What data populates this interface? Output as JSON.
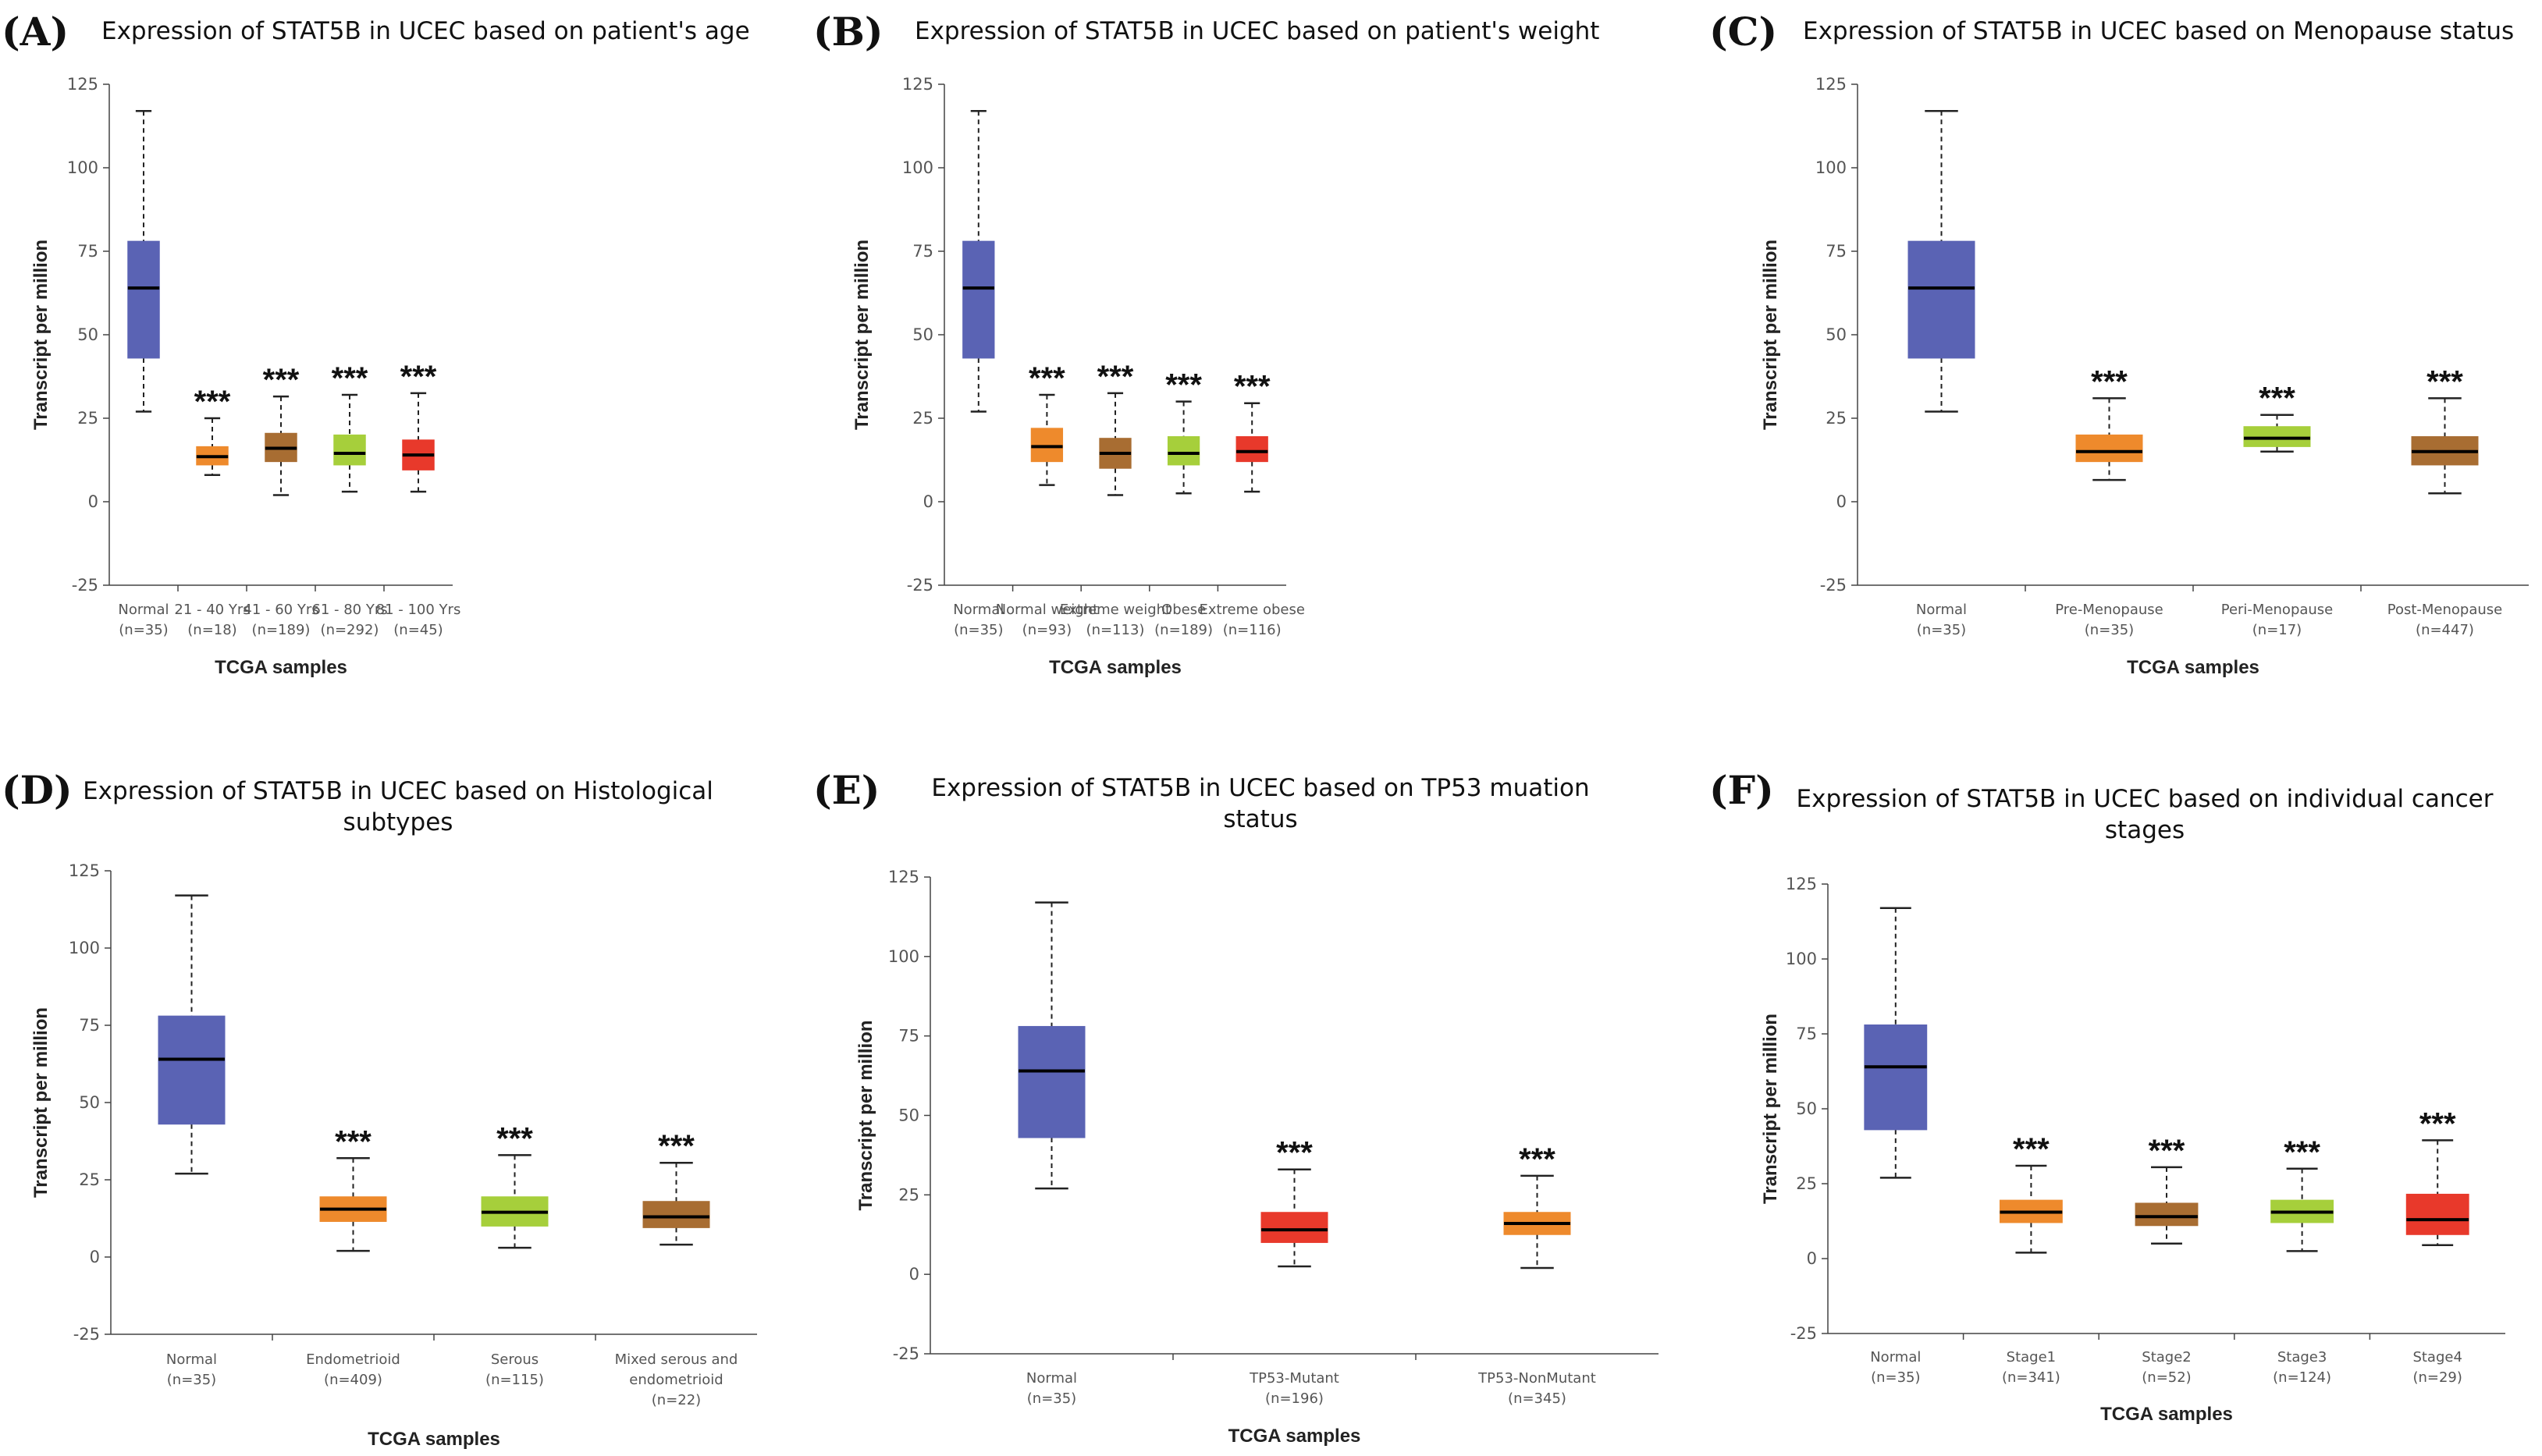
{
  "chart_data": [
    {
      "panel": "(A)",
      "type": "boxplot",
      "title": [
        "Expression of STAT5B in UCEC based on patient's age"
      ],
      "xlabel": "TCGA samples",
      "ylabel": "Transcript per million",
      "ylim": [
        -25,
        125
      ],
      "yticks": [
        -25,
        0,
        25,
        50,
        75,
        100,
        125
      ],
      "categories": [
        {
          "label": [
            "Normal",
            "(n=35)"
          ],
          "color": "#5a63b4",
          "min": 27,
          "q1": 43,
          "median": 64,
          "q3": 78,
          "max": 117,
          "sig": ""
        },
        {
          "label": [
            "21 - 40 Yrs",
            "(n=18)"
          ],
          "color": "#ee8a2c",
          "min": 8,
          "q1": 11,
          "median": 13.5,
          "q3": 16.5,
          "max": 25,
          "sig": "***"
        },
        {
          "label": [
            "41 - 60 Yrs",
            "(n=189)"
          ],
          "color": "#a86d32",
          "min": 2,
          "q1": 12,
          "median": 16,
          "q3": 20.5,
          "max": 31.5,
          "sig": "***"
        },
        {
          "label": [
            "61 - 80 Yrs",
            "(n=292)"
          ],
          "color": "#a6cf3b",
          "min": 3,
          "q1": 11,
          "median": 14.5,
          "q3": 20,
          "max": 32,
          "sig": "***"
        },
        {
          "label": [
            "81 - 100 Yrs",
            "(n=45)"
          ],
          "color": "#e8392b",
          "min": 3,
          "q1": 9.5,
          "median": 14,
          "q3": 18.5,
          "max": 32.5,
          "sig": "***"
        }
      ]
    },
    {
      "panel": "(B)",
      "type": "boxplot",
      "title": [
        "Expression of STAT5B in UCEC based on patient's weight"
      ],
      "xlabel": "TCGA samples",
      "ylabel": "Transcript per million",
      "ylim": [
        -25,
        125
      ],
      "yticks": [
        -25,
        0,
        25,
        50,
        75,
        100,
        125
      ],
      "categories": [
        {
          "label": [
            "Normal",
            "(n=35)"
          ],
          "color": "#5a63b4",
          "min": 27,
          "q1": 43,
          "median": 64,
          "q3": 78,
          "max": 117,
          "sig": ""
        },
        {
          "label": [
            "Normal weight",
            "(n=93)"
          ],
          "color": "#ee8a2c",
          "min": 5,
          "q1": 12,
          "median": 16.5,
          "q3": 22,
          "max": 32,
          "sig": "***"
        },
        {
          "label": [
            "Extreme weight",
            "(n=113)"
          ],
          "color": "#a86d32",
          "min": 2,
          "q1": 10,
          "median": 14.5,
          "q3": 19,
          "max": 32.5,
          "sig": "***"
        },
        {
          "label": [
            "Obese",
            "(n=189)"
          ],
          "color": "#a6cf3b",
          "min": 2.5,
          "q1": 11,
          "median": 14.5,
          "q3": 19.5,
          "max": 30,
          "sig": "***"
        },
        {
          "label": [
            "Extreme obese",
            "(n=116)"
          ],
          "color": "#e8392b",
          "min": 3,
          "q1": 12,
          "median": 15,
          "q3": 19.5,
          "max": 29.5,
          "sig": "***"
        }
      ]
    },
    {
      "panel": "(C)",
      "type": "boxplot",
      "title": [
        "Expression of STAT5B in UCEC based on Menopause status"
      ],
      "xlabel": "TCGA samples",
      "ylabel": "Transcript per million",
      "ylim": [
        -25,
        125
      ],
      "yticks": [
        -25,
        0,
        25,
        50,
        75,
        100,
        125
      ],
      "categories": [
        {
          "label": [
            "Normal",
            "(n=35)"
          ],
          "color": "#5a63b4",
          "min": 27,
          "q1": 43,
          "median": 64,
          "q3": 78,
          "max": 117,
          "sig": ""
        },
        {
          "label": [
            "Pre-Menopause",
            "(n=35)"
          ],
          "color": "#ee8a2c",
          "min": 6.5,
          "q1": 12,
          "median": 15,
          "q3": 20,
          "max": 31,
          "sig": "***"
        },
        {
          "label": [
            "Peri-Menopause",
            "(n=17)"
          ],
          "color": "#a6cf3b",
          "min": 15,
          "q1": 16.5,
          "median": 19,
          "q3": 22.5,
          "max": 26,
          "sig": "***"
        },
        {
          "label": [
            "Post-Menopause",
            "(n=447)"
          ],
          "color": "#a86d32",
          "min": 2.5,
          "q1": 11,
          "median": 15,
          "q3": 19.5,
          "max": 31,
          "sig": "***"
        }
      ]
    },
    {
      "panel": "(D)",
      "type": "boxplot",
      "title": [
        "Expression of STAT5B in UCEC based on Histological",
        "subtypes"
      ],
      "xlabel": "TCGA samples",
      "ylabel": "Transcript per million",
      "ylim": [
        -25,
        125
      ],
      "yticks": [
        -25,
        0,
        25,
        50,
        75,
        100,
        125
      ],
      "categories": [
        {
          "label": [
            "Normal",
            "(n=35)"
          ],
          "color": "#5a63b4",
          "min": 27,
          "q1": 43,
          "median": 64,
          "q3": 78,
          "max": 117,
          "sig": ""
        },
        {
          "label": [
            "Endometrioid",
            "(n=409)"
          ],
          "color": "#ee8a2c",
          "min": 2,
          "q1": 11.5,
          "median": 15.5,
          "q3": 19.5,
          "max": 32,
          "sig": "***"
        },
        {
          "label": [
            "Serous",
            "(n=115)"
          ],
          "color": "#a6cf3b",
          "min": 3,
          "q1": 10,
          "median": 14.5,
          "q3": 19.5,
          "max": 33,
          "sig": "***"
        },
        {
          "label": [
            "Mixed serous and",
            "endometrioid",
            "(n=22)"
          ],
          "color": "#a86d32",
          "min": 4,
          "q1": 9.5,
          "median": 13,
          "q3": 18,
          "max": 30.5,
          "sig": "***"
        }
      ]
    },
    {
      "panel": "(E)",
      "type": "boxplot",
      "title": [
        "Expression of STAT5B in UCEC based on TP53 muation",
        "status"
      ],
      "xlabel": "TCGA samples",
      "ylabel": "Transcript per million",
      "ylim": [
        -25,
        125
      ],
      "yticks": [
        -25,
        0,
        25,
        50,
        75,
        100,
        125
      ],
      "categories": [
        {
          "label": [
            "Normal",
            "(n=35)"
          ],
          "color": "#5a63b4",
          "min": 27,
          "q1": 43,
          "median": 64,
          "q3": 78,
          "max": 117,
          "sig": ""
        },
        {
          "label": [
            "TP53-Mutant",
            "(n=196)"
          ],
          "color": "#e8392b",
          "min": 2.5,
          "q1": 10,
          "median": 14,
          "q3": 19.5,
          "max": 33,
          "sig": "***"
        },
        {
          "label": [
            "TP53-NonMutant",
            "(n=345)"
          ],
          "color": "#ee8a2c",
          "min": 2,
          "q1": 12.5,
          "median": 16,
          "q3": 19.5,
          "max": 31,
          "sig": "***"
        }
      ]
    },
    {
      "panel": "(F)",
      "type": "boxplot",
      "title": [
        "Expression of STAT5B in UCEC based on individual cancer",
        "stages"
      ],
      "xlabel": "TCGA samples",
      "ylabel": "Transcript per million",
      "ylim": [
        -25,
        125
      ],
      "yticks": [
        -25,
        0,
        25,
        50,
        75,
        100,
        125
      ],
      "categories": [
        {
          "label": [
            "Normal",
            "(n=35)"
          ],
          "color": "#5a63b4",
          "min": 27,
          "q1": 43,
          "median": 64,
          "q3": 78,
          "max": 117,
          "sig": ""
        },
        {
          "label": [
            "Stage1",
            "(n=341)"
          ],
          "color": "#ee8a2c",
          "min": 2,
          "q1": 12,
          "median": 15.5,
          "q3": 19.5,
          "max": 31,
          "sig": "***"
        },
        {
          "label": [
            "Stage2",
            "(n=52)"
          ],
          "color": "#a86d32",
          "min": 5,
          "q1": 11,
          "median": 14,
          "q3": 18.5,
          "max": 30.5,
          "sig": "***"
        },
        {
          "label": [
            "Stage3",
            "(n=124)"
          ],
          "color": "#a6cf3b",
          "min": 2.5,
          "q1": 12,
          "median": 15.5,
          "q3": 19.5,
          "max": 30,
          "sig": "***"
        },
        {
          "label": [
            "Stage4",
            "(n=29)"
          ],
          "color": "#e8392b",
          "min": 4.5,
          "q1": 8,
          "median": 13,
          "q3": 21.5,
          "max": 39.5,
          "sig": "***"
        }
      ]
    }
  ]
}
